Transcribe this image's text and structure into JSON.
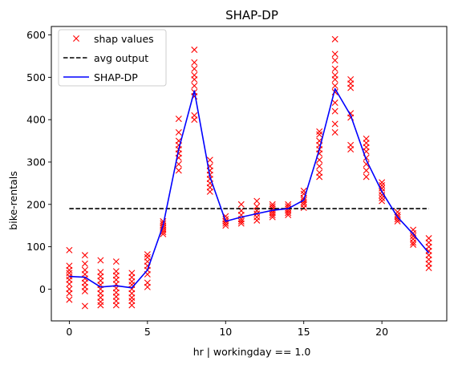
{
  "chart_data": {
    "type": "scatter+line",
    "title": "SHAP-DP",
    "xlabel": "hr | workingday == 1.0",
    "ylabel": "bike-rentals",
    "xlim": [
      -1.15,
      24.15
    ],
    "ylim": [
      -75,
      620
    ],
    "xticks": [
      0,
      5,
      10,
      15,
      20
    ],
    "yticks": [
      0,
      100,
      200,
      300,
      400,
      500,
      600
    ],
    "grid": false,
    "legend": {
      "placement": "top-left",
      "entries": [
        "shap values",
        "avg output",
        "SHAP-DP"
      ]
    },
    "avg_output": 190,
    "shap_dp": {
      "name": "SHAP-DP",
      "x": [
        0,
        1,
        2,
        3,
        4,
        5,
        6,
        7,
        8,
        9,
        10,
        11,
        12,
        13,
        14,
        15,
        16,
        17,
        18,
        19,
        20,
        21,
        22,
        23
      ],
      "y": [
        30,
        28,
        5,
        8,
        3,
        45,
        150,
        330,
        468,
        265,
        160,
        170,
        178,
        186,
        190,
        210,
        330,
        473,
        410,
        305,
        230,
        170,
        130,
        85
      ]
    },
    "shap_values": {
      "name": "shap values",
      "points": [
        [
          0,
          92
        ],
        [
          0,
          55
        ],
        [
          0,
          45
        ],
        [
          0,
          38
        ],
        [
          0,
          30
        ],
        [
          0,
          22
        ],
        [
          0,
          12
        ],
        [
          0,
          0
        ],
        [
          0,
          -10
        ],
        [
          0,
          -25
        ],
        [
          1,
          80
        ],
        [
          1,
          60
        ],
        [
          1,
          45
        ],
        [
          1,
          35
        ],
        [
          1,
          25
        ],
        [
          1,
          15
        ],
        [
          1,
          5
        ],
        [
          1,
          -5
        ],
        [
          1,
          -40
        ],
        [
          2,
          68
        ],
        [
          2,
          40
        ],
        [
          2,
          30
        ],
        [
          2,
          20
        ],
        [
          2,
          10
        ],
        [
          2,
          0
        ],
        [
          2,
          -10
        ],
        [
          2,
          -20
        ],
        [
          2,
          -30
        ],
        [
          2,
          -38
        ],
        [
          3,
          65
        ],
        [
          3,
          42
        ],
        [
          3,
          32
        ],
        [
          3,
          22
        ],
        [
          3,
          12
        ],
        [
          3,
          2
        ],
        [
          3,
          -8
        ],
        [
          3,
          -18
        ],
        [
          3,
          -28
        ],
        [
          3,
          -38
        ],
        [
          4,
          38
        ],
        [
          4,
          28
        ],
        [
          4,
          18
        ],
        [
          4,
          10
        ],
        [
          4,
          0
        ],
        [
          4,
          -10
        ],
        [
          4,
          -20
        ],
        [
          4,
          -28
        ],
        [
          4,
          -38
        ],
        [
          5,
          82
        ],
        [
          5,
          75
        ],
        [
          5,
          65
        ],
        [
          5,
          55
        ],
        [
          5,
          45
        ],
        [
          5,
          35
        ],
        [
          5,
          15
        ],
        [
          5,
          5
        ],
        [
          6,
          160
        ],
        [
          6,
          155
        ],
        [
          6,
          150
        ],
        [
          6,
          145
        ],
        [
          6,
          140
        ],
        [
          6,
          135
        ],
        [
          6,
          130
        ],
        [
          7,
          402
        ],
        [
          7,
          370
        ],
        [
          7,
          350
        ],
        [
          7,
          340
        ],
        [
          7,
          330
        ],
        [
          7,
          320
        ],
        [
          7,
          310
        ],
        [
          7,
          295
        ],
        [
          7,
          280
        ],
        [
          8,
          565
        ],
        [
          8,
          535
        ],
        [
          8,
          520
        ],
        [
          8,
          505
        ],
        [
          8,
          495
        ],
        [
          8,
          480
        ],
        [
          8,
          465
        ],
        [
          8,
          455
        ],
        [
          8,
          410
        ],
        [
          8,
          400
        ],
        [
          9,
          305
        ],
        [
          9,
          290
        ],
        [
          9,
          280
        ],
        [
          9,
          270
        ],
        [
          9,
          260
        ],
        [
          9,
          250
        ],
        [
          9,
          240
        ],
        [
          9,
          230
        ],
        [
          10,
          172
        ],
        [
          10,
          165
        ],
        [
          10,
          160
        ],
        [
          10,
          155
        ],
        [
          10,
          150
        ],
        [
          11,
          200
        ],
        [
          11,
          185
        ],
        [
          11,
          175
        ],
        [
          11,
          165
        ],
        [
          11,
          160
        ],
        [
          11,
          155
        ],
        [
          12,
          208
        ],
        [
          12,
          195
        ],
        [
          12,
          185
        ],
        [
          12,
          178
        ],
        [
          12,
          170
        ],
        [
          12,
          162
        ],
        [
          13,
          200
        ],
        [
          13,
          195
        ],
        [
          13,
          190
        ],
        [
          13,
          185
        ],
        [
          13,
          180
        ],
        [
          13,
          175
        ],
        [
          13,
          170
        ],
        [
          14,
          200
        ],
        [
          14,
          195
        ],
        [
          14,
          190
        ],
        [
          14,
          185
        ],
        [
          14,
          180
        ],
        [
          14,
          175
        ],
        [
          15,
          232
        ],
        [
          15,
          225
        ],
        [
          15,
          215
        ],
        [
          15,
          210
        ],
        [
          15,
          205
        ],
        [
          15,
          200
        ],
        [
          15,
          192
        ],
        [
          16,
          372
        ],
        [
          16,
          365
        ],
        [
          16,
          350
        ],
        [
          16,
          340
        ],
        [
          16,
          330
        ],
        [
          16,
          320
        ],
        [
          16,
          305
        ],
        [
          16,
          290
        ],
        [
          16,
          275
        ],
        [
          16,
          265
        ],
        [
          17,
          590
        ],
        [
          17,
          555
        ],
        [
          17,
          540
        ],
        [
          17,
          520
        ],
        [
          17,
          505
        ],
        [
          17,
          495
        ],
        [
          17,
          480
        ],
        [
          17,
          465
        ],
        [
          17,
          440
        ],
        [
          17,
          420
        ],
        [
          17,
          390
        ],
        [
          17,
          370
        ],
        [
          18,
          495
        ],
        [
          18,
          485
        ],
        [
          18,
          475
        ],
        [
          18,
          415
        ],
        [
          18,
          405
        ],
        [
          18,
          340
        ],
        [
          18,
          330
        ],
        [
          19,
          355
        ],
        [
          19,
          345
        ],
        [
          19,
          335
        ],
        [
          19,
          325
        ],
        [
          19,
          310
        ],
        [
          19,
          295
        ],
        [
          19,
          280
        ],
        [
          19,
          265
        ],
        [
          20,
          252
        ],
        [
          20,
          245
        ],
        [
          20,
          238
        ],
        [
          20,
          230
        ],
        [
          20,
          222
        ],
        [
          20,
          215
        ],
        [
          20,
          208
        ],
        [
          21,
          182
        ],
        [
          21,
          175
        ],
        [
          21,
          170
        ],
        [
          21,
          165
        ],
        [
          21,
          160
        ],
        [
          22,
          140
        ],
        [
          22,
          132
        ],
        [
          22,
          125
        ],
        [
          22,
          118
        ],
        [
          22,
          110
        ],
        [
          22,
          105
        ],
        [
          23,
          120
        ],
        [
          23,
          110
        ],
        [
          23,
          100
        ],
        [
          23,
          90
        ],
        [
          23,
          80
        ],
        [
          23,
          70
        ],
        [
          23,
          60
        ],
        [
          23,
          50
        ]
      ]
    },
    "colors": {
      "markers": "#ff0000",
      "line": "#0000ff",
      "avg": "#000000"
    }
  }
}
